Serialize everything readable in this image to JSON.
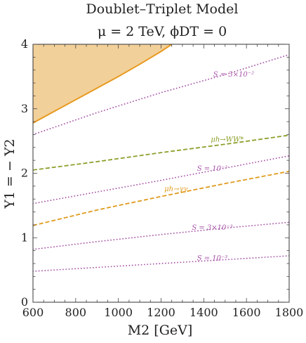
{
  "chart_data": {
    "type": "line",
    "title": "Doublet–Triplet Model",
    "subtitle": "μ = 2 TeV, ϕDT = 0",
    "xlabel": "M2 [GeV]",
    "ylabel": "Y1 = − Y2",
    "xlim": [
      600,
      1800
    ],
    "ylim": [
      0,
      4
    ],
    "xticks": [
      600,
      800,
      1000,
      1200,
      1400,
      1600,
      1800
    ],
    "yticks": [
      0,
      1,
      2,
      3,
      4
    ],
    "grid": false,
    "colors": {
      "excluded_fill": "#f2d09a",
      "excluded_boundary": "#e89a20",
      "s_contour": "#a855a8",
      "mu_ww": "#8aa02a",
      "mu_gg": "#e09a1c"
    },
    "regions": [
      {
        "name": "excluded",
        "boundary_x": [
          600,
          700,
          800,
          900,
          1000,
          1100,
          1200,
          1250
        ],
        "boundary_y": [
          2.78,
          2.96,
          3.14,
          3.32,
          3.5,
          3.69,
          3.89,
          4.0
        ]
      }
    ],
    "series": [
      {
        "name": "S = 3×10⁻²",
        "style": "dotted",
        "x": [
          600,
          900,
          1200,
          1500,
          1800
        ],
        "y": [
          2.6,
          2.94,
          3.25,
          3.53,
          3.84
        ]
      },
      {
        "name": "μh→WW*",
        "style": "dashed",
        "x": [
          600,
          900,
          1200,
          1500,
          1800
        ],
        "y": [
          2.05,
          2.18,
          2.32,
          2.45,
          2.59
        ]
      },
      {
        "name": "S = 10⁻²",
        "style": "dotted",
        "x": [
          600,
          900,
          1200,
          1500,
          1800
        ],
        "y": [
          1.53,
          1.71,
          1.89,
          2.08,
          2.27
        ]
      },
      {
        "name": "μh→γγ",
        "style": "dashed",
        "x": [
          600,
          900,
          1200,
          1500,
          1800
        ],
        "y": [
          1.19,
          1.43,
          1.64,
          1.84,
          2.03
        ]
      },
      {
        "name": "S = 3×10⁻³",
        "style": "dotted",
        "x": [
          600,
          900,
          1200,
          1500,
          1800
        ],
        "y": [
          0.82,
          0.94,
          1.05,
          1.15,
          1.24
        ]
      },
      {
        "name": "S = 10⁻³",
        "style": "dotted",
        "x": [
          600,
          900,
          1200,
          1500,
          1800
        ],
        "y": [
          0.48,
          0.54,
          0.6,
          0.66,
          0.72
        ]
      }
    ],
    "annotations": [
      {
        "text": "S = 3×10⁻²",
        "x": 1540,
        "y": 3.5
      },
      {
        "text": "μh→WW*",
        "x": 1510,
        "y": 2.49
      },
      {
        "text": "S = 10⁻²",
        "x": 1440,
        "y": 2.04
      },
      {
        "text": "μh→γγ",
        "x": 1270,
        "y": 1.72
      },
      {
        "text": "S = 3×10⁻³",
        "x": 1440,
        "y": 1.12
      },
      {
        "text": "S = 10⁻³",
        "x": 1440,
        "y": 0.65
      }
    ]
  }
}
